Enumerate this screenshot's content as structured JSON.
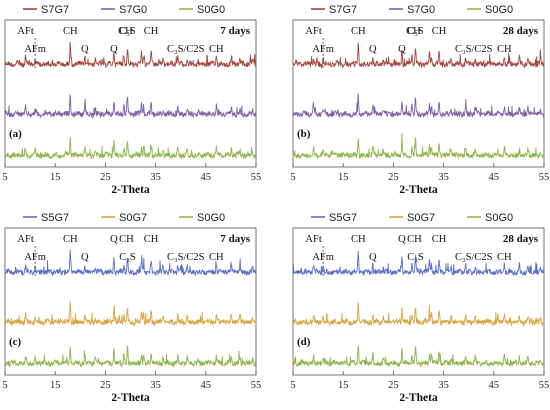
{
  "chart_data": [
    {
      "type": "line",
      "panel_label": "(a)",
      "age_label": "7 days",
      "xlabel": "2-Theta",
      "xlim": [
        5,
        55
      ],
      "xticks": [
        "5",
        "15",
        "25",
        "35",
        "45",
        "55"
      ],
      "series": [
        {
          "name": "S7G7",
          "color": "#a0483e",
          "offset": 3
        },
        {
          "name": "S7G0",
          "color": "#7b62a8",
          "offset": 2
        },
        {
          "name": "S0G0",
          "color": "#8fb54a",
          "offset": 1
        }
      ],
      "peak_labels": [
        {
          "text": "AFt",
          "x": 9.1
        },
        {
          "text": "AFm",
          "x": 11.0
        },
        {
          "text": "CH",
          "x": 18.0
        },
        {
          "text": "Q",
          "x": 20.9
        },
        {
          "text": "C₃S",
          "x": 29.4
        },
        {
          "text": "Q",
          "x": 26.7
        },
        {
          "text": "CH",
          "x": 29.0
        },
        {
          "text": "CH",
          "x": 34.1
        },
        {
          "text": "C₃S/C2S",
          "x": 41.0
        },
        {
          "text": "CH",
          "x": 47.1
        }
      ]
    },
    {
      "type": "line",
      "panel_label": "(b)",
      "age_label": "28 days",
      "xlabel": "2-Theta",
      "xlim": [
        5,
        55
      ],
      "xticks": [
        "5",
        "15",
        "25",
        "35",
        "45",
        "55"
      ],
      "series": [
        {
          "name": "S7G7",
          "color": "#a0483e",
          "offset": 3
        },
        {
          "name": "S7G0",
          "color": "#7b62a8",
          "offset": 2
        },
        {
          "name": "S0G0",
          "color": "#8fb54a",
          "offset": 1
        }
      ],
      "peak_labels": [
        {
          "text": "AFt",
          "x": 9.1
        },
        {
          "text": "AFm",
          "x": 11.0
        },
        {
          "text": "CH",
          "x": 18.0
        },
        {
          "text": "Q",
          "x": 20.9
        },
        {
          "text": "C₃S",
          "x": 29.4
        },
        {
          "text": "Q",
          "x": 26.7
        },
        {
          "text": "CH",
          "x": 29.0
        },
        {
          "text": "CH",
          "x": 34.1
        },
        {
          "text": "C₃S/C2S",
          "x": 41.0
        },
        {
          "text": "CH",
          "x": 47.1
        }
      ]
    },
    {
      "type": "line",
      "panel_label": "(c)",
      "age_label": "7 days",
      "xlabel": "2-Theta",
      "xlim": [
        5,
        55
      ],
      "xticks": [
        "5",
        "15",
        "25",
        "35",
        "45",
        "55"
      ],
      "series": [
        {
          "name": "S5G7",
          "color": "#5b6fc4",
          "offset": 3
        },
        {
          "name": "S0G7",
          "color": "#d6a441",
          "offset": 2
        },
        {
          "name": "S0G0",
          "color": "#8fb54a",
          "offset": 1
        }
      ],
      "peak_labels": [
        {
          "text": "AFt",
          "x": 9.1
        },
        {
          "text": "AFm",
          "x": 11.0
        },
        {
          "text": "CH",
          "x": 18.0
        },
        {
          "text": "Q",
          "x": 20.9
        },
        {
          "text": "Q",
          "x": 26.7
        },
        {
          "text": "C₃S",
          "x": 29.4
        },
        {
          "text": "CH",
          "x": 29.2
        },
        {
          "text": "CH",
          "x": 34.1
        },
        {
          "text": "C₃S/C2S",
          "x": 41.0
        },
        {
          "text": "CH",
          "x": 47.1
        }
      ]
    },
    {
      "type": "line",
      "panel_label": "(d)",
      "age_label": "28 days",
      "xlabel": "2-Theta",
      "xlim": [
        5,
        55
      ],
      "xticks": [
        "5",
        "15",
        "25",
        "35",
        "45",
        "55"
      ],
      "series": [
        {
          "name": "S5G7",
          "color": "#5b6fc4",
          "offset": 3
        },
        {
          "name": "S0G7",
          "color": "#d6a441",
          "offset": 2
        },
        {
          "name": "S0G0",
          "color": "#8fb54a",
          "offset": 1
        }
      ],
      "peak_labels": [
        {
          "text": "AFt",
          "x": 9.1
        },
        {
          "text": "AFm",
          "x": 11.0
        },
        {
          "text": "CH",
          "x": 18.0
        },
        {
          "text": "Q",
          "x": 20.9
        },
        {
          "text": "Q",
          "x": 26.7
        },
        {
          "text": "C₃S",
          "x": 29.4
        },
        {
          "text": "CH",
          "x": 29.2
        },
        {
          "text": "CH",
          "x": 34.1
        },
        {
          "text": "C₃S/C2S",
          "x": 41.0
        },
        {
          "text": "CH",
          "x": 47.1
        }
      ]
    }
  ]
}
